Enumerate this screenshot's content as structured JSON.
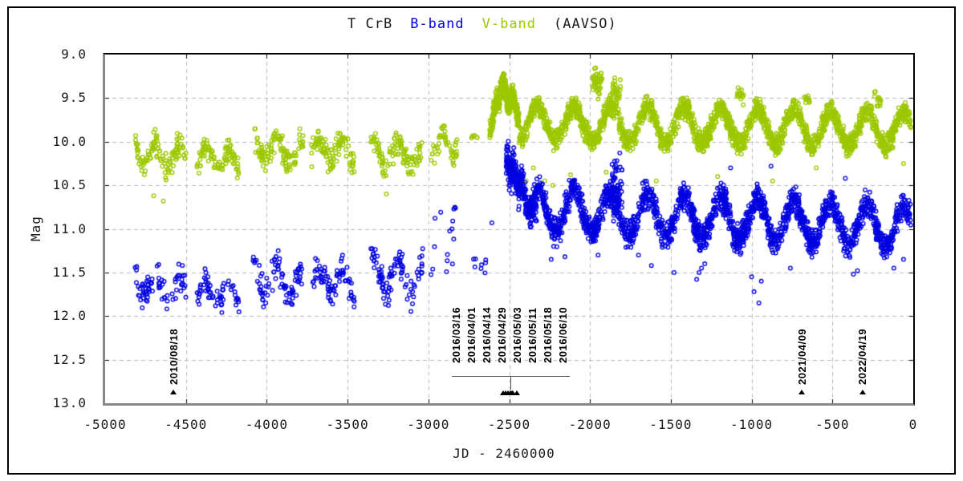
{
  "title": {
    "target": "T CrB",
    "band_b": "B-band",
    "band_v": "V-band",
    "source": "(AAVSO)"
  },
  "colors": {
    "b_band": "#0000E0",
    "v_band": "#9CC800",
    "grid": "#B9B9B9",
    "frame_dark": "#000000",
    "frame_gray": "#888888",
    "annotation": "#000000",
    "background": "#FFFFFF",
    "tick_text": "#1A1A1A"
  },
  "chart_data": {
    "type": "scatter",
    "title": "T CrB  B-band  V-band  (AAVSO)",
    "xlabel": "JD - 2460000",
    "ylabel": "Mag",
    "xlim": [
      -5000,
      0
    ],
    "ylim": [
      13.0,
      9.0
    ],
    "y_axis_inverted_magnitude_scale": true,
    "grid": true,
    "legend_position": "in-title",
    "marker": {
      "shape": "open-circle",
      "radius_px": 2.3
    },
    "x_ticks": {
      "values": [
        -5000,
        -4500,
        -4000,
        -3500,
        -3000,
        -2500,
        -2000,
        -1500,
        -1000,
        -500,
        0
      ],
      "labels": [
        "-5000",
        "-4500",
        "-4000",
        "-3500",
        "-3000",
        "-2500",
        "-2000",
        "-1500",
        "-1000",
        "-500",
        "0"
      ]
    },
    "y_ticks": {
      "values": [
        9.0,
        9.5,
        10.0,
        10.5,
        11.0,
        11.5,
        12.0,
        12.5,
        13.0
      ],
      "labels": [
        "9.0",
        "9.5",
        "10.0",
        "10.5",
        "11.0",
        "11.5",
        "12.0",
        "12.5",
        "13.0"
      ]
    },
    "cluster_fields": [
      "jd_start",
      "jd_end",
      "n_points",
      "mag_mean_start",
      "mag_mean_end",
      "wave_amplitude_mag",
      "wave_period_days",
      "scatter_halfwidth_mag"
    ],
    "series": [
      {
        "name": "B-band",
        "color": "#0000E0",
        "clusters": [
          [
            -4816,
            -4500,
            75,
            11.6,
            11.7,
            0.15,
            150,
            0.13
          ],
          [
            -4434,
            -4171,
            62,
            11.72,
            11.76,
            0.12,
            140,
            0.12
          ],
          [
            -4086,
            -3773,
            85,
            11.55,
            11.65,
            0.17,
            150,
            0.13
          ],
          [
            -3724,
            -3455,
            75,
            11.58,
            11.62,
            0.16,
            140,
            0.13
          ],
          [
            -3357,
            -3034,
            95,
            11.5,
            11.6,
            0.2,
            150,
            0.14
          ],
          [
            -2984,
            -2820,
            16,
            11.0,
            11.1,
            0.25,
            100,
            0.28
          ],
          [
            -2730,
            -2640,
            8,
            11.35,
            11.42,
            0.0,
            1,
            0.1
          ],
          [
            -2520,
            -2480,
            70,
            10.32,
            10.3,
            0.1,
            50,
            0.18
          ],
          [
            -2480,
            -2430,
            90,
            10.35,
            10.5,
            0.1,
            60,
            0.15
          ],
          [
            -2430,
            -2330,
            140,
            10.55,
            10.85,
            0.12,
            80,
            0.14
          ],
          [
            -1865,
            -1800,
            50,
            10.5,
            10.55,
            0.0,
            1,
            0.3
          ],
          [
            -2330,
            -15,
            1900,
            10.78,
            10.98,
            0.24,
            227,
            0.13
          ]
        ],
        "outliers": [
          [
            -2607,
            10.93
          ],
          [
            -2240,
            11.35
          ],
          [
            -2225,
            11.2
          ],
          [
            -2155,
            11.32
          ],
          [
            -1950,
            11.3
          ],
          [
            -1700,
            11.3
          ],
          [
            -1620,
            11.42
          ],
          [
            -1480,
            11.5
          ],
          [
            -1340,
            11.58
          ],
          [
            -1325,
            11.5
          ],
          [
            -1310,
            11.45
          ],
          [
            -1290,
            11.4
          ],
          [
            -1000,
            11.55
          ],
          [
            -985,
            11.72
          ],
          [
            -955,
            11.85
          ],
          [
            -940,
            11.6
          ],
          [
            -760,
            11.45
          ],
          [
            -370,
            11.52
          ],
          [
            -345,
            11.48
          ],
          [
            -120,
            11.45
          ],
          [
            -60,
            11.35
          ],
          [
            -1840,
            10.32
          ],
          [
            -1130,
            10.3
          ],
          [
            -880,
            10.28
          ],
          [
            -420,
            10.42
          ]
        ]
      },
      {
        "name": "V-band",
        "color": "#9CC800",
        "clusters": [
          [
            -4816,
            -4500,
            110,
            10.12,
            10.18,
            0.13,
            150,
            0.12
          ],
          [
            -4434,
            -4171,
            95,
            10.18,
            10.22,
            0.12,
            140,
            0.11
          ],
          [
            -4086,
            -3773,
            115,
            10.05,
            10.15,
            0.14,
            150,
            0.12
          ],
          [
            -3724,
            -3455,
            105,
            10.08,
            10.12,
            0.13,
            140,
            0.12
          ],
          [
            -3357,
            -3034,
            115,
            10.1,
            10.2,
            0.15,
            150,
            0.12
          ],
          [
            -2984,
            -2820,
            48,
            10.0,
            10.05,
            0.12,
            120,
            0.1
          ],
          [
            -2755,
            -2665,
            6,
            9.93,
            9.97,
            0.0,
            1,
            0.05
          ],
          [
            -2620,
            -2560,
            90,
            9.8,
            9.55,
            0.1,
            80,
            0.1
          ],
          [
            -2560,
            -2480,
            190,
            9.42,
            9.5,
            0.12,
            70,
            0.11
          ],
          [
            -2480,
            -2440,
            80,
            9.55,
            9.65,
            0.1,
            60,
            0.1
          ],
          [
            -2440,
            -15,
            2100,
            9.78,
            9.86,
            0.2,
            227,
            0.1
          ],
          [
            -1985,
            -1925,
            45,
            9.3,
            9.35,
            0.08,
            40,
            0.1
          ],
          [
            -1865,
            -1810,
            30,
            9.4,
            9.44,
            0.05,
            40,
            0.08
          ],
          [
            -1090,
            -1050,
            15,
            9.45,
            9.5,
            0.0,
            1,
            0.06
          ],
          [
            -680,
            -640,
            12,
            9.5,
            9.52,
            0.0,
            1,
            0.05
          ],
          [
            -240,
            -200,
            15,
            9.5,
            9.55,
            0.0,
            1,
            0.06
          ]
        ],
        "outliers": [
          [
            -4700,
            10.62
          ],
          [
            -4640,
            10.68
          ],
          [
            -3260,
            10.6
          ],
          [
            -2395,
            10.45
          ],
          [
            -2350,
            10.3
          ],
          [
            -2280,
            10.45
          ],
          [
            -2230,
            10.5
          ],
          [
            -2120,
            10.38
          ],
          [
            -1900,
            10.35
          ],
          [
            -1590,
            10.45
          ],
          [
            -1210,
            10.4
          ],
          [
            -870,
            10.45
          ],
          [
            -600,
            10.3
          ],
          [
            -60,
            10.25
          ]
        ]
      }
    ]
  },
  "annotations": {
    "marker_shape": "black-up-triangle",
    "single_events": [
      {
        "label": "2010/08/18",
        "jd": -4573
      },
      {
        "label": "2021/04/09",
        "jd": -686
      },
      {
        "label": "2022/04/19",
        "jd": -311
      }
    ],
    "event_group_2016": {
      "labels": [
        "2016/03/16",
        "2016/04/01",
        "2016/04/14",
        "2016/04/29",
        "2016/05/03",
        "2016/05/11",
        "2016/05/18",
        "2016/06/10"
      ],
      "jds": [
        -2536,
        -2520,
        -2507,
        -2492,
        -2488,
        -2480,
        -2473,
        -2450
      ]
    }
  }
}
